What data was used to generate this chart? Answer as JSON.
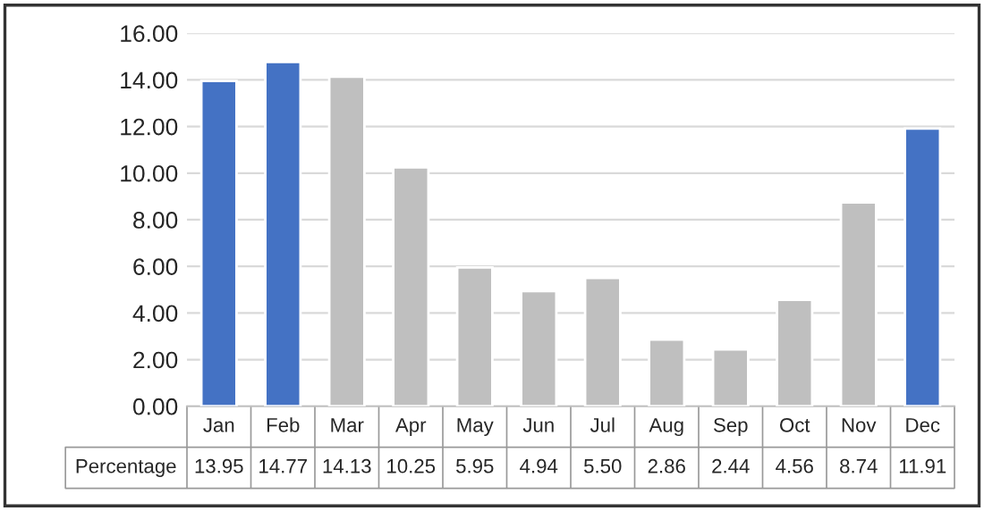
{
  "chart_data": {
    "type": "bar",
    "categories": [
      "Jan",
      "Feb",
      "Mar",
      "Apr",
      "May",
      "Jun",
      "Jul",
      "Aug",
      "Sep",
      "Oct",
      "Nov",
      "Dec"
    ],
    "series": [
      {
        "name": "Percentage",
        "values": [
          13.95,
          14.77,
          14.13,
          10.25,
          5.95,
          4.94,
          5.5,
          2.86,
          2.44,
          4.56,
          8.74,
          11.91
        ],
        "colors": [
          "#4472c4",
          "#4472c4",
          "#bfbfbf",
          "#bfbfbf",
          "#bfbfbf",
          "#bfbfbf",
          "#bfbfbf",
          "#bfbfbf",
          "#bfbfbf",
          "#bfbfbf",
          "#bfbfbf",
          "#4472c4"
        ],
        "value_labels": [
          "13.95",
          "14.77",
          "14.13",
          "10.25",
          "5.95",
          "4.94",
          "5.50",
          "2.86",
          "2.44",
          "4.56",
          "8.74",
          "11.91"
        ]
      }
    ],
    "ylim": [
      0,
      16
    ],
    "yticks": [
      {
        "value": 0,
        "label": "0.00"
      },
      {
        "value": 2,
        "label": "2.00"
      },
      {
        "value": 4,
        "label": "4.00"
      },
      {
        "value": 6,
        "label": "6.00"
      },
      {
        "value": 8,
        "label": "8.00"
      },
      {
        "value": 10,
        "label": "10.00"
      },
      {
        "value": 12,
        "label": "12.00"
      },
      {
        "value": 14,
        "label": "14.00"
      },
      {
        "value": 16,
        "label": "16.00"
      }
    ],
    "grid": "y"
  }
}
